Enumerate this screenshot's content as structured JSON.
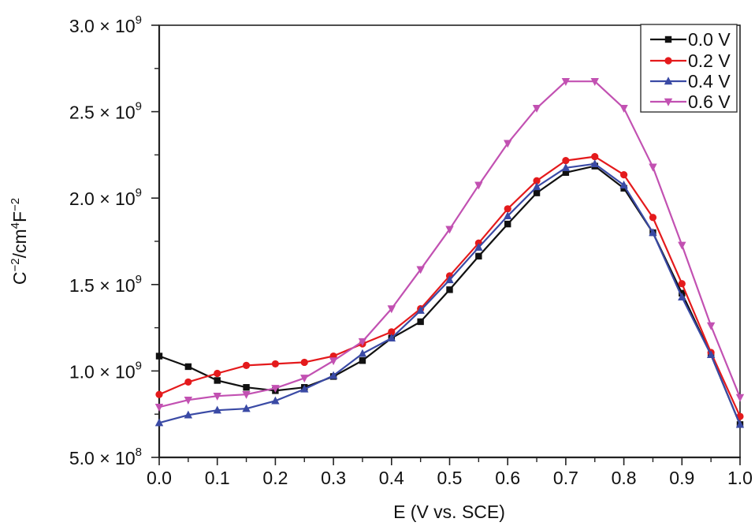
{
  "chart_data": {
    "type": "line",
    "title": "",
    "xlabel": "E (V vs. SCE)",
    "ylabel": "C⁻²/cm⁴F⁻²",
    "xlim": [
      0.0,
      1.0
    ],
    "ylim": [
      500000000.0,
      3000000000.0
    ],
    "grid": false,
    "legend_position": "upper right",
    "x_ticks": [
      0.0,
      0.1,
      0.2,
      0.3,
      0.4,
      0.5,
      0.6,
      0.7,
      0.8,
      0.9,
      1.0
    ],
    "x_tick_labels": [
      "0.0",
      "0.1",
      "0.2",
      "0.3",
      "0.4",
      "0.5",
      "0.6",
      "0.7",
      "0.8",
      "0.9",
      "1.0"
    ],
    "y_ticks": [
      500000000.0,
      1000000000.0,
      1500000000.0,
      2000000000.0,
      2500000000.0,
      3000000000.0
    ],
    "y_tick_labels": [
      {
        "mantissa": "5.0",
        "exp": "8"
      },
      {
        "mantissa": "1.0",
        "exp": "9"
      },
      {
        "mantissa": "1.5",
        "exp": "9"
      },
      {
        "mantissa": "2.0",
        "exp": "9"
      },
      {
        "mantissa": "2.5",
        "exp": "9"
      },
      {
        "mantissa": "3.0",
        "exp": "9"
      }
    ],
    "x": [
      0.0,
      0.05,
      0.1,
      0.15,
      0.2,
      0.25,
      0.3,
      0.35,
      0.4,
      0.45,
      0.5,
      0.55,
      0.6,
      0.65,
      0.7,
      0.75,
      0.8,
      0.85,
      0.9,
      0.95,
      1.0
    ],
    "series": [
      {
        "name": "0.0 V",
        "color": "#111111",
        "marker": "square",
        "values": [
          1086000000.0,
          1025000000.0,
          945000000.0,
          905000000.0,
          886000000.0,
          905000000.0,
          968000000.0,
          1060000000.0,
          1190000000.0,
          1285000000.0,
          1470000000.0,
          1664000000.0,
          1850000000.0,
          2030000000.0,
          2148000000.0,
          2185000000.0,
          2057000000.0,
          1800000000.0,
          1450000000.0,
          1094000000.0,
          690000000.0
        ]
      },
      {
        "name": "0.2 V",
        "color": "#e41a1c",
        "marker": "circle",
        "values": [
          864000000.0,
          936000000.0,
          986000000.0,
          1032000000.0,
          1041000000.0,
          1050000000.0,
          1086000000.0,
          1157000000.0,
          1226000000.0,
          1360000000.0,
          1550000000.0,
          1740000000.0,
          1938000000.0,
          2100000000.0,
          2217000000.0,
          2240000000.0,
          2135000000.0,
          1888000000.0,
          1505000000.0,
          1107000000.0,
          737000000.0
        ]
      },
      {
        "name": "0.4 V",
        "color": "#3a4aa5",
        "marker": "triangle-up",
        "values": [
          700000000.0,
          745000000.0,
          773000000.0,
          782000000.0,
          827000000.0,
          895000000.0,
          973000000.0,
          1100000000.0,
          1190000000.0,
          1350000000.0,
          1527000000.0,
          1715000000.0,
          1897000000.0,
          2065000000.0,
          2175000000.0,
          2198000000.0,
          2075000000.0,
          1800000000.0,
          1427000000.0,
          1094000000.0,
          690000000.0
        ]
      },
      {
        "name": "0.6 V",
        "color": "#c251b2",
        "marker": "triangle-down",
        "values": [
          791000000.0,
          832000000.0,
          855000000.0,
          864000000.0,
          900000000.0,
          959000000.0,
          1059000000.0,
          1170000000.0,
          1360000000.0,
          1587000000.0,
          1820000000.0,
          2075000000.0,
          2317000000.0,
          2520000000.0,
          2675000000.0,
          2675000000.0,
          2520000000.0,
          2180000000.0,
          1728000000.0,
          1262000000.0,
          847000000.0
        ]
      }
    ]
  },
  "legend": {
    "items": [
      {
        "label": "0.0 V"
      },
      {
        "label": "0.2 V"
      },
      {
        "label": "0.4 V"
      },
      {
        "label": "0.6 V"
      }
    ]
  },
  "axes": {
    "x_title": "E (V vs. SCE)",
    "y_title_parts": {
      "c": "C",
      "c_exp": "−2",
      "unit": "/cm",
      "unit_exp": "4",
      "f": "F",
      "f_exp": "−2"
    },
    "times_sign": "×",
    "base": "10"
  }
}
